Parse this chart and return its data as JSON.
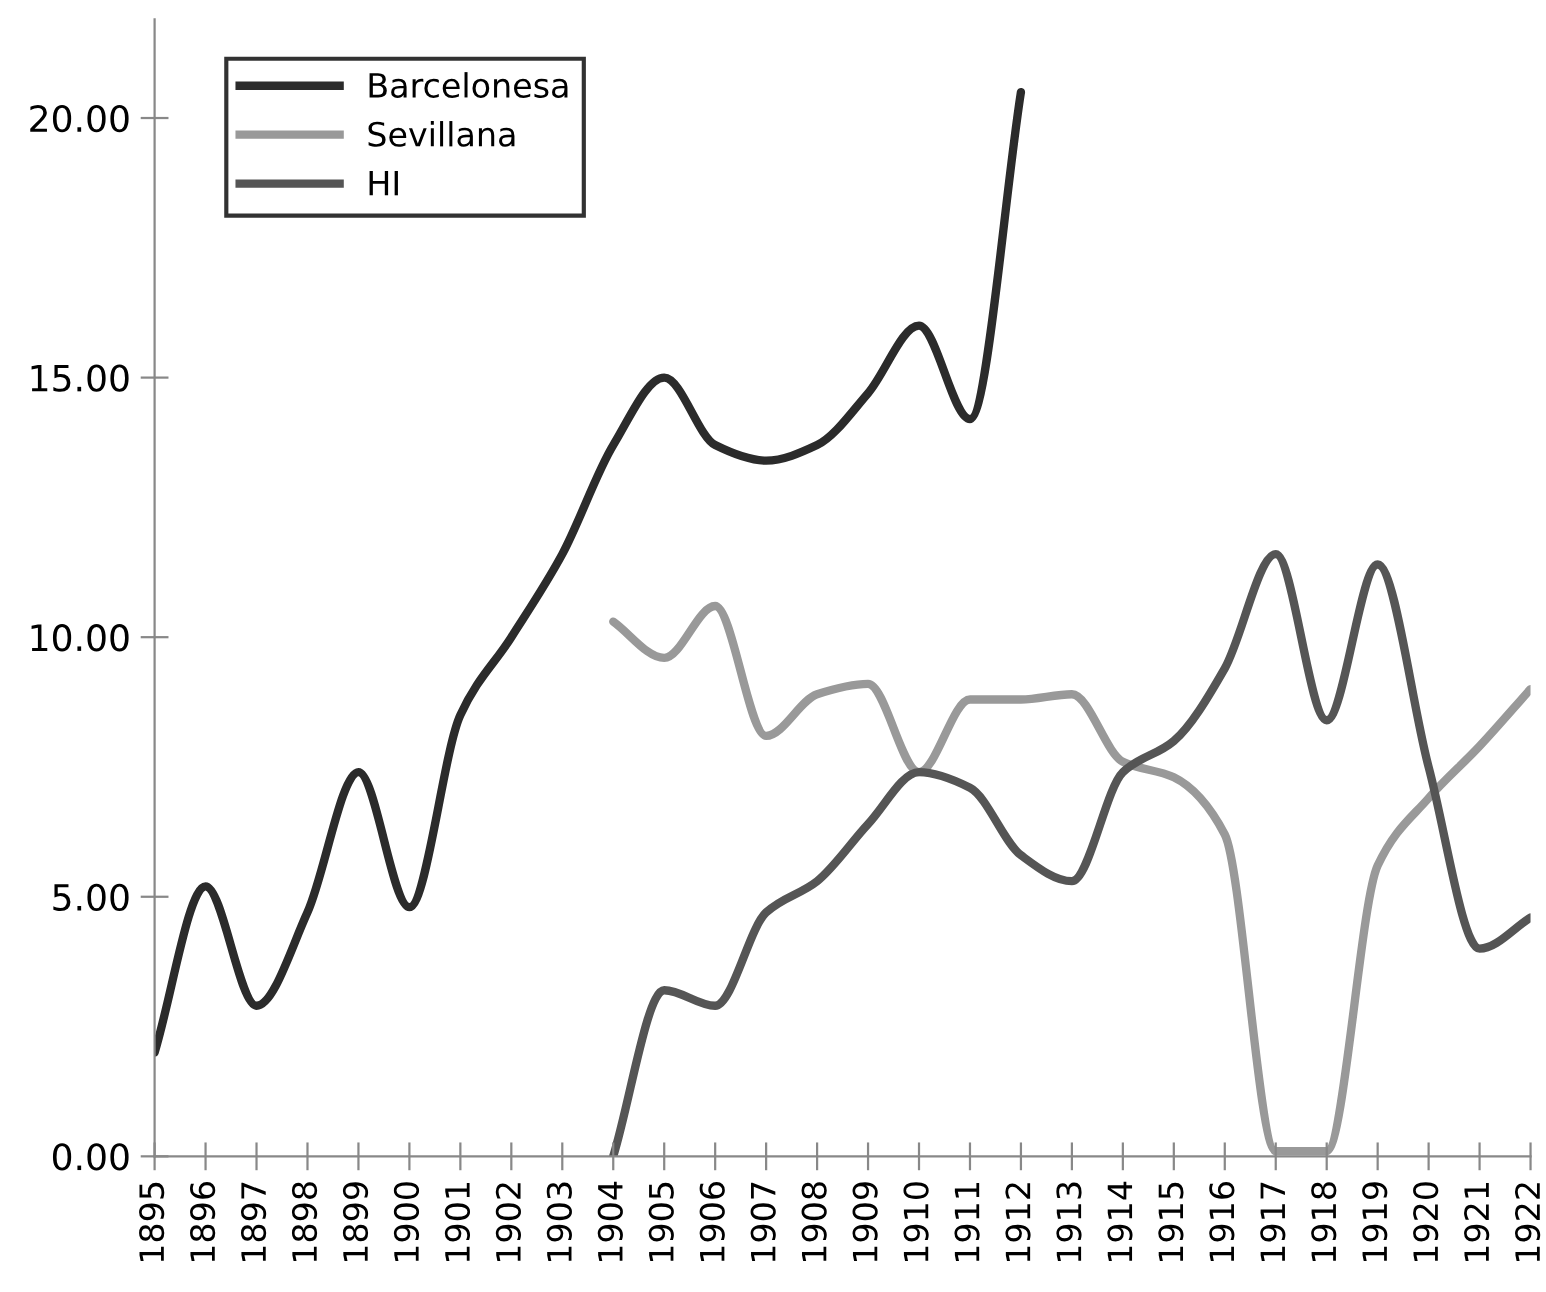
{
  "chart_data": {
    "type": "line",
    "categories": [
      "1895",
      "1896",
      "1897",
      "1898",
      "1899",
      "1900",
      "1901",
      "1902",
      "1903",
      "1904",
      "1905",
      "1906",
      "1907",
      "1908",
      "1909",
      "1910",
      "1911",
      "1912",
      "1913",
      "1914",
      "1915",
      "1916",
      "1917",
      "1918",
      "1919",
      "1920",
      "1921",
      "1922"
    ],
    "series": [
      {
        "name": "Barcelonesa",
        "color": "#2b2b2b",
        "values": [
          2.0,
          5.2,
          2.9,
          4.7,
          7.4,
          4.8,
          8.5,
          10.0,
          11.6,
          13.7,
          15.0,
          13.7,
          13.4,
          13.7,
          14.7,
          16.0,
          14.2,
          20.5,
          null,
          null,
          null,
          null,
          null,
          null,
          null,
          null,
          null,
          null
        ]
      },
      {
        "name": "Sevillana",
        "color": "#999999",
        "values": [
          null,
          null,
          null,
          null,
          null,
          null,
          null,
          null,
          null,
          10.3,
          9.6,
          10.6,
          8.1,
          8.9,
          9.1,
          7.4,
          8.8,
          8.8,
          8.9,
          7.6,
          7.3,
          6.2,
          0.1,
          0.1,
          5.6,
          6.9,
          7.9,
          9.0
        ]
      },
      {
        "name": "HI",
        "color": "#555555",
        "values": [
          null,
          null,
          null,
          null,
          null,
          null,
          null,
          null,
          null,
          0.0,
          3.2,
          2.9,
          4.7,
          5.3,
          6.4,
          7.4,
          7.1,
          5.8,
          5.3,
          7.4,
          8.0,
          9.4,
          11.6,
          8.4,
          11.4,
          7.5,
          4.0,
          4.6
        ]
      }
    ],
    "ylim": [
      0,
      21.9
    ],
    "yticks": [
      {
        "value": 0,
        "label": "0.00"
      },
      {
        "value": 5,
        "label": "5.00"
      },
      {
        "value": 10,
        "label": "10.00"
      },
      {
        "value": 15,
        "label": "15.00"
      },
      {
        "value": 20,
        "label": "20.00"
      }
    ],
    "legend": "top left",
    "grid": false,
    "marker": "none",
    "line_style": "solid"
  }
}
